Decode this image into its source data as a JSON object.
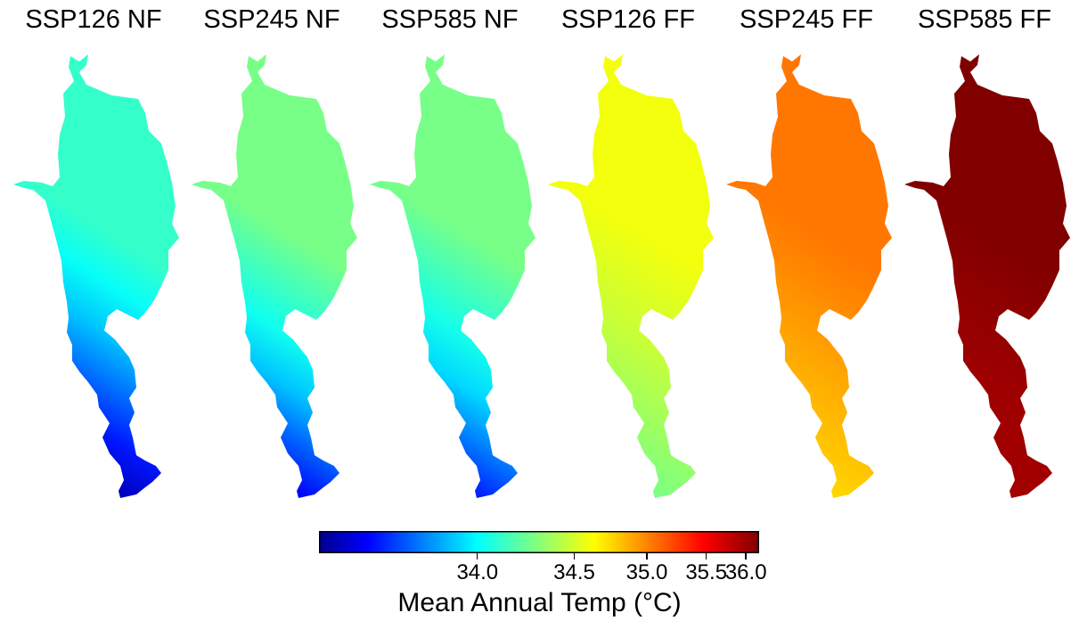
{
  "chart_data": {
    "type": "heatmap",
    "panels": [
      {
        "title": "SSP126 NF",
        "range": [
          33.55,
          34.15
        ]
      },
      {
        "title": "SSP245 NF",
        "range": [
          33.6,
          34.3
        ]
      },
      {
        "title": "SSP585 NF",
        "range": [
          33.65,
          34.3
        ]
      },
      {
        "title": "SSP126 FF",
        "range": [
          34.25,
          34.6
        ]
      },
      {
        "title": "SSP245 FF",
        "range": [
          34.7,
          35.05
        ]
      },
      {
        "title": "SSP585 FF",
        "range": [
          35.95,
          36.05
        ]
      }
    ],
    "colorbar": {
      "label": "Mean Annual Temp (°C)",
      "colormap": "jet",
      "ticks": [
        {
          "value": 34.0,
          "label": "34.0"
        },
        {
          "value": 34.5,
          "label": "34.5"
        },
        {
          "value": 35.0,
          "label": "35.0"
        },
        {
          "value": 35.5,
          "label": "35.5"
        },
        {
          "value": 36.0,
          "label": "36.0"
        }
      ]
    }
  }
}
